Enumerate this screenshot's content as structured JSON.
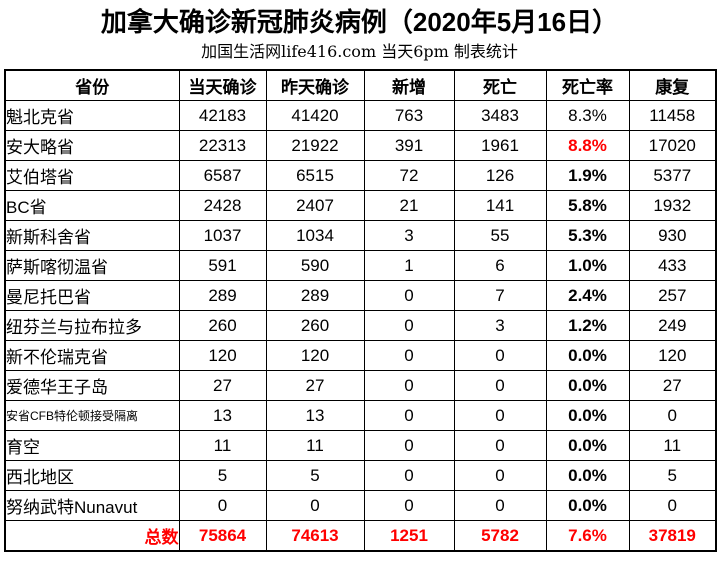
{
  "title": "加拿大确诊新冠肺炎病例（2020年5月16日）",
  "subtitle": "加国生活网life416.com 当天6pm 制表统计",
  "colors": {
    "accent_red": "#ff0000",
    "text": "#000000",
    "border": "#000000",
    "background": "#ffffff"
  },
  "table": {
    "headers": [
      "省份",
      "当天确诊",
      "昨天确诊",
      "新增",
      "死亡",
      "死亡率",
      "康复"
    ],
    "rows": [
      {
        "province": "魁北克省",
        "today": "42183",
        "yesterday": "41420",
        "new_cases": "763",
        "deaths": "3483",
        "death_rate": "8.3%",
        "recovered": "11458",
        "death_rate_style": "regular",
        "small_font": false
      },
      {
        "province": "安大略省",
        "today": "22313",
        "yesterday": "21922",
        "new_cases": "391",
        "deaths": "1961",
        "death_rate": "8.8%",
        "recovered": "17020",
        "death_rate_style": "red",
        "small_font": false
      },
      {
        "province": "艾伯塔省",
        "today": "6587",
        "yesterday": "6515",
        "new_cases": "72",
        "deaths": "126",
        "death_rate": "1.9%",
        "recovered": "5377",
        "death_rate_style": "bold",
        "small_font": false
      },
      {
        "province": "BC省",
        "today": "2428",
        "yesterday": "2407",
        "new_cases": "21",
        "deaths": "141",
        "death_rate": "5.8%",
        "recovered": "1932",
        "death_rate_style": "bold",
        "small_font": false
      },
      {
        "province": "新斯科舍省",
        "today": "1037",
        "yesterday": "1034",
        "new_cases": "3",
        "deaths": "55",
        "death_rate": "5.3%",
        "recovered": "930",
        "death_rate_style": "bold",
        "small_font": false
      },
      {
        "province": "萨斯喀彻温省",
        "today": "591",
        "yesterday": "590",
        "new_cases": "1",
        "deaths": "6",
        "death_rate": "1.0%",
        "recovered": "433",
        "death_rate_style": "bold",
        "small_font": false
      },
      {
        "province": "曼尼托巴省",
        "today": "289",
        "yesterday": "289",
        "new_cases": "0",
        "deaths": "7",
        "death_rate": "2.4%",
        "recovered": "257",
        "death_rate_style": "bold",
        "small_font": false
      },
      {
        "province": "纽芬兰与拉布拉多",
        "today": "260",
        "yesterday": "260",
        "new_cases": "0",
        "deaths": "3",
        "death_rate": "1.2%",
        "recovered": "249",
        "death_rate_style": "bold",
        "small_font": false
      },
      {
        "province": "新不伦瑞克省",
        "today": "120",
        "yesterday": "120",
        "new_cases": "0",
        "deaths": "0",
        "death_rate": "0.0%",
        "recovered": "120",
        "death_rate_style": "bold",
        "small_font": false
      },
      {
        "province": "爱德华王子岛",
        "today": "27",
        "yesterday": "27",
        "new_cases": "0",
        "deaths": "0",
        "death_rate": "0.0%",
        "recovered": "27",
        "death_rate_style": "bold",
        "small_font": false
      },
      {
        "province": "安省CFB特伦顿接受隔离",
        "today": "13",
        "yesterday": "13",
        "new_cases": "0",
        "deaths": "0",
        "death_rate": "0.0%",
        "recovered": "0",
        "death_rate_style": "bold",
        "small_font": true
      },
      {
        "province": "育空",
        "today": "11",
        "yesterday": "11",
        "new_cases": "0",
        "deaths": "0",
        "death_rate": "0.0%",
        "recovered": "11",
        "death_rate_style": "bold",
        "small_font": false
      },
      {
        "province": "西北地区",
        "today": "5",
        "yesterday": "5",
        "new_cases": "0",
        "deaths": "0",
        "death_rate": "0.0%",
        "recovered": "5",
        "death_rate_style": "bold",
        "small_font": false
      },
      {
        "province": "努纳武特Nunavut",
        "today": "0",
        "yesterday": "0",
        "new_cases": "0",
        "deaths": "0",
        "death_rate": "0.0%",
        "recovered": "0",
        "death_rate_style": "bold",
        "small_font": false
      }
    ],
    "total": {
      "label": "总数",
      "today": "75864",
      "yesterday": "74613",
      "new_cases": "1251",
      "deaths": "5782",
      "death_rate": "7.6%",
      "recovered": "37819"
    }
  }
}
